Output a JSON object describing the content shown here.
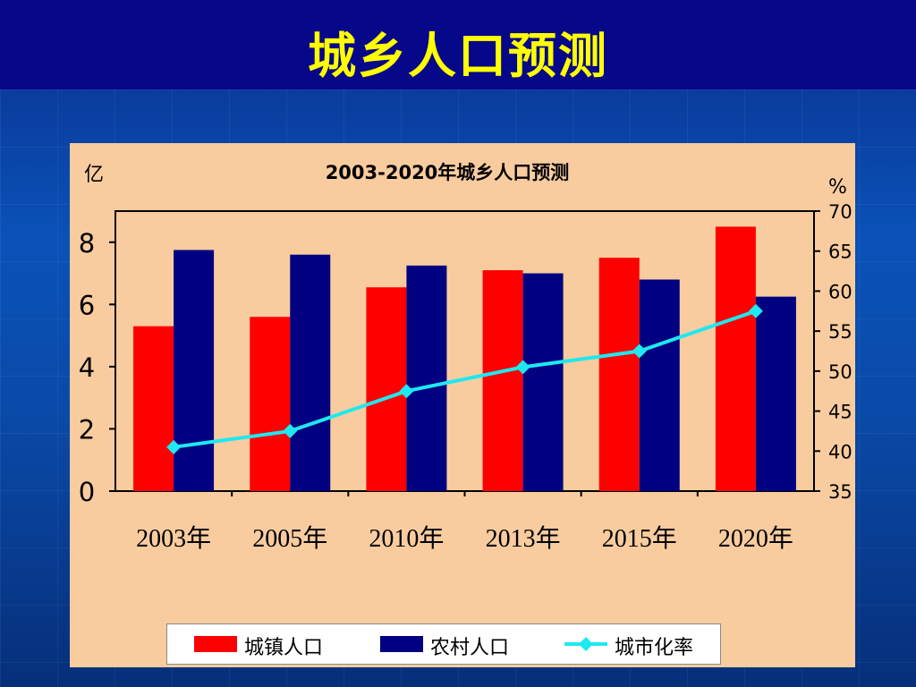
{
  "header": {
    "title": "城乡人口预测"
  },
  "chart_data": {
    "type": "bar",
    "title": "2003-2020年城乡人口预测",
    "ylabel_left": "亿",
    "ylabel_right": "%",
    "categories": [
      "2003年",
      "2005年",
      "2010年",
      "2013年",
      "2015年",
      "2020年"
    ],
    "ylim_left": [
      0,
      9
    ],
    "yticks_left": [
      0,
      2,
      4,
      6,
      8
    ],
    "ylim_right": [
      35,
      70
    ],
    "yticks_right": [
      35,
      40,
      45,
      50,
      55,
      60,
      65,
      70
    ],
    "series": [
      {
        "name": "城镇人口",
        "kind": "bar",
        "axis": "left",
        "color": "#ff0000",
        "values": [
          5.3,
          5.6,
          6.55,
          7.1,
          7.5,
          8.5
        ]
      },
      {
        "name": "农村人口",
        "kind": "bar",
        "axis": "left",
        "color": "#000080",
        "values": [
          7.75,
          7.6,
          7.25,
          7.0,
          6.8,
          6.25
        ]
      },
      {
        "name": "城市化率",
        "kind": "line",
        "axis": "right",
        "color": "#1ee8f0",
        "values": [
          40.5,
          42.5,
          47.5,
          50.5,
          52.5,
          57.5
        ]
      }
    ],
    "grid": false,
    "legend_position": "bottom"
  }
}
